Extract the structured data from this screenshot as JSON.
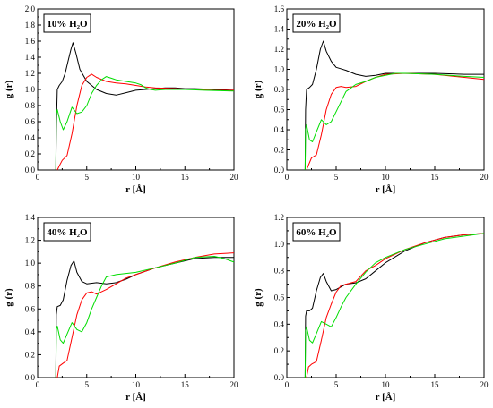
{
  "chart_data": [
    {
      "type": "line",
      "title": "10% H₂O",
      "xlabel": "r [Å]",
      "ylabel": "g (r)",
      "xlim": [
        0,
        20
      ],
      "ylim": [
        0,
        2.0
      ],
      "xticks": [
        "0",
        "5",
        "10",
        "15",
        "20"
      ],
      "yticks": [
        "0.0",
        "0.2",
        "0.4",
        "0.6",
        "0.8",
        "1.0",
        "1.2",
        "1.4",
        "1.6",
        "1.8",
        "2.0"
      ],
      "legend": "none",
      "series": [
        {
          "color": "#000000",
          "x": [
            1.85,
            1.9,
            2.0,
            2.2,
            2.5,
            2.8,
            3.1,
            3.4,
            3.6,
            3.9,
            4.3,
            5.0,
            6.0,
            7.0,
            8.0,
            9.0,
            10.0,
            11.0,
            12.0,
            13.0,
            14.0,
            15.0,
            16.0,
            18.0,
            20.0
          ],
          "y": [
            0,
            0.5,
            1.0,
            1.05,
            1.1,
            1.2,
            1.35,
            1.5,
            1.58,
            1.45,
            1.25,
            1.1,
            1.0,
            0.95,
            0.93,
            0.96,
            0.99,
            1.0,
            1.01,
            1.02,
            1.02,
            1.01,
            1.01,
            1.0,
            0.99
          ]
        },
        {
          "color": "#ff0000",
          "x": [
            2.0,
            2.2,
            2.5,
            3.0,
            3.5,
            4.0,
            4.5,
            5.0,
            5.5,
            6.0,
            7.0,
            8.0,
            9.0,
            10.0,
            11.0,
            12.0,
            14.0,
            16.0,
            18.0,
            20.0
          ],
          "y": [
            0,
            0.05,
            0.12,
            0.18,
            0.45,
            0.8,
            1.05,
            1.15,
            1.19,
            1.15,
            1.1,
            1.08,
            1.07,
            1.05,
            1.03,
            1.02,
            1.01,
            1.0,
            0.99,
            0.99
          ]
        },
        {
          "color": "#00dd00",
          "x": [
            1.85,
            1.9,
            2.0,
            2.3,
            2.6,
            3.0,
            3.5,
            4.0,
            4.5,
            5.0,
            5.5,
            6.0,
            6.5,
            7.0,
            7.5,
            8.0,
            9.0,
            10.0,
            10.5,
            11.0,
            11.5,
            12.0,
            13.0,
            15.0,
            17.0,
            20.0
          ],
          "y": [
            0,
            0.7,
            0.75,
            0.6,
            0.5,
            0.6,
            0.78,
            0.7,
            0.72,
            0.8,
            0.95,
            1.05,
            1.12,
            1.16,
            1.14,
            1.12,
            1.1,
            1.08,
            1.06,
            1.02,
            1.0,
            0.99,
            1.0,
            1.0,
            0.99,
            0.98
          ]
        }
      ]
    },
    {
      "type": "line",
      "title": "20% H₂O",
      "xlabel": "r [Å]",
      "ylabel": "g (r)",
      "xlim": [
        0,
        20
      ],
      "ylim": [
        0,
        1.6
      ],
      "xticks": [
        "0",
        "5",
        "10",
        "15",
        "20"
      ],
      "yticks": [
        "0.0",
        "0.2",
        "0.4",
        "0.6",
        "0.8",
        "1.0",
        "1.2",
        "1.4",
        "1.6"
      ],
      "legend": "none",
      "series": [
        {
          "color": "#000000",
          "x": [
            1.85,
            1.9,
            2.0,
            2.3,
            2.6,
            3.0,
            3.4,
            3.7,
            4.0,
            4.5,
            5.0,
            6.0,
            7.0,
            8.0,
            9.0,
            10.0,
            12.0,
            15.0,
            18.0,
            20.0
          ],
          "y": [
            0,
            0.6,
            0.8,
            0.82,
            0.85,
            1.0,
            1.2,
            1.28,
            1.18,
            1.08,
            1.02,
            0.99,
            0.95,
            0.93,
            0.94,
            0.96,
            0.96,
            0.96,
            0.95,
            0.95
          ]
        },
        {
          "color": "#ff0000",
          "x": [
            2.0,
            2.2,
            2.5,
            3.0,
            3.5,
            4.0,
            4.5,
            5.0,
            5.5,
            6.0,
            7.0,
            8.0,
            9.0,
            10.0,
            12.0,
            15.0,
            18.0,
            20.0
          ],
          "y": [
            0,
            0.05,
            0.12,
            0.15,
            0.35,
            0.6,
            0.75,
            0.82,
            0.83,
            0.82,
            0.83,
            0.88,
            0.92,
            0.95,
            0.96,
            0.95,
            0.92,
            0.9
          ]
        },
        {
          "color": "#00dd00",
          "x": [
            1.85,
            1.9,
            2.0,
            2.3,
            2.6,
            3.0,
            3.5,
            4.0,
            4.5,
            5.0,
            6.0,
            7.0,
            8.0,
            9.0,
            10.0,
            11.0,
            12.0,
            15.0,
            18.0,
            20.0
          ],
          "y": [
            0,
            0.4,
            0.45,
            0.3,
            0.28,
            0.38,
            0.5,
            0.45,
            0.48,
            0.58,
            0.78,
            0.85,
            0.88,
            0.92,
            0.94,
            0.96,
            0.96,
            0.95,
            0.93,
            0.92
          ]
        }
      ]
    },
    {
      "type": "line",
      "title": "40% H₂O",
      "xlabel": "r [Å]",
      "ylabel": "g (r)",
      "xlim": [
        0,
        20
      ],
      "ylim": [
        0,
        1.4
      ],
      "xticks": [
        "0",
        "5",
        "10",
        "15",
        "20"
      ],
      "yticks": [
        "0.0",
        "0.2",
        "0.4",
        "0.6",
        "0.8",
        "1.0",
        "1.2",
        "1.4"
      ],
      "legend": "none",
      "series": [
        {
          "color": "#000000",
          "x": [
            1.85,
            1.9,
            2.0,
            2.3,
            2.6,
            3.0,
            3.4,
            3.7,
            4.0,
            4.5,
            5.0,
            6.0,
            7.0,
            8.0,
            9.0,
            10.0,
            12.0,
            14.0,
            16.0,
            18.0,
            20.0
          ],
          "y": [
            0,
            0.55,
            0.62,
            0.63,
            0.68,
            0.85,
            0.98,
            1.02,
            0.92,
            0.84,
            0.82,
            0.83,
            0.82,
            0.83,
            0.86,
            0.9,
            0.96,
            1.0,
            1.04,
            1.05,
            1.05
          ]
        },
        {
          "color": "#ff0000",
          "x": [
            2.0,
            2.2,
            2.5,
            3.0,
            3.5,
            4.0,
            4.5,
            5.0,
            5.5,
            6.0,
            7.0,
            8.0,
            9.0,
            10.0,
            12.0,
            14.0,
            16.0,
            18.0,
            20.0
          ],
          "y": [
            0,
            0.1,
            0.12,
            0.15,
            0.35,
            0.55,
            0.68,
            0.74,
            0.75,
            0.73,
            0.77,
            0.82,
            0.87,
            0.9,
            0.96,
            1.01,
            1.05,
            1.08,
            1.09
          ]
        },
        {
          "color": "#00dd00",
          "x": [
            1.85,
            1.9,
            2.0,
            2.3,
            2.6,
            3.0,
            3.5,
            4.0,
            4.5,
            5.0,
            5.5,
            6.0,
            6.5,
            7.0,
            8.0,
            9.0,
            10.0,
            12.0,
            14.0,
            16.0,
            18.0,
            19.0,
            20.0
          ],
          "y": [
            0,
            0.42,
            0.45,
            0.33,
            0.3,
            0.38,
            0.48,
            0.42,
            0.4,
            0.48,
            0.6,
            0.7,
            0.8,
            0.88,
            0.9,
            0.91,
            0.92,
            0.96,
            1.0,
            1.05,
            1.06,
            1.04,
            1.01
          ]
        }
      ]
    },
    {
      "type": "line",
      "title": "60% H₂O",
      "xlabel": "r [Å]",
      "ylabel": "g (r)",
      "xlim": [
        0,
        20
      ],
      "ylim": [
        0,
        1.2
      ],
      "xticks": [
        "0",
        "5",
        "10",
        "15",
        "20"
      ],
      "yticks": [
        "0.0",
        "0.2",
        "0.4",
        "0.6",
        "0.8",
        "1.0",
        "1.2"
      ],
      "legend": "none",
      "series": [
        {
          "color": "#000000",
          "x": [
            1.85,
            1.9,
            2.0,
            2.3,
            2.6,
            3.0,
            3.4,
            3.7,
            4.0,
            4.5,
            5.0,
            6.0,
            7.0,
            8.0,
            9.0,
            10.0,
            12.0,
            14.0,
            16.0,
            18.0,
            20.0
          ],
          "y": [
            0,
            0.46,
            0.5,
            0.5,
            0.52,
            0.65,
            0.75,
            0.78,
            0.72,
            0.65,
            0.66,
            0.7,
            0.71,
            0.74,
            0.8,
            0.86,
            0.95,
            1.01,
            1.05,
            1.07,
            1.08
          ]
        },
        {
          "color": "#ff0000",
          "x": [
            2.0,
            2.2,
            2.5,
            3.0,
            3.5,
            4.0,
            4.5,
            5.0,
            5.5,
            6.0,
            7.0,
            8.0,
            9.0,
            10.0,
            12.0,
            14.0,
            16.0,
            18.0,
            20.0
          ],
          "y": [
            0,
            0.08,
            0.1,
            0.12,
            0.28,
            0.45,
            0.55,
            0.64,
            0.69,
            0.7,
            0.72,
            0.8,
            0.84,
            0.89,
            0.96,
            1.01,
            1.05,
            1.07,
            1.08
          ]
        },
        {
          "color": "#00dd00",
          "x": [
            1.85,
            1.9,
            2.0,
            2.3,
            2.6,
            3.0,
            3.5,
            4.0,
            4.5,
            5.0,
            5.5,
            6.0,
            7.0,
            8.0,
            9.0,
            10.0,
            12.0,
            14.0,
            16.0,
            18.0,
            20.0
          ],
          "y": [
            0,
            0.35,
            0.38,
            0.28,
            0.26,
            0.33,
            0.42,
            0.4,
            0.38,
            0.45,
            0.53,
            0.6,
            0.7,
            0.79,
            0.86,
            0.9,
            0.96,
            1.0,
            1.04,
            1.06,
            1.08
          ]
        }
      ]
    }
  ]
}
